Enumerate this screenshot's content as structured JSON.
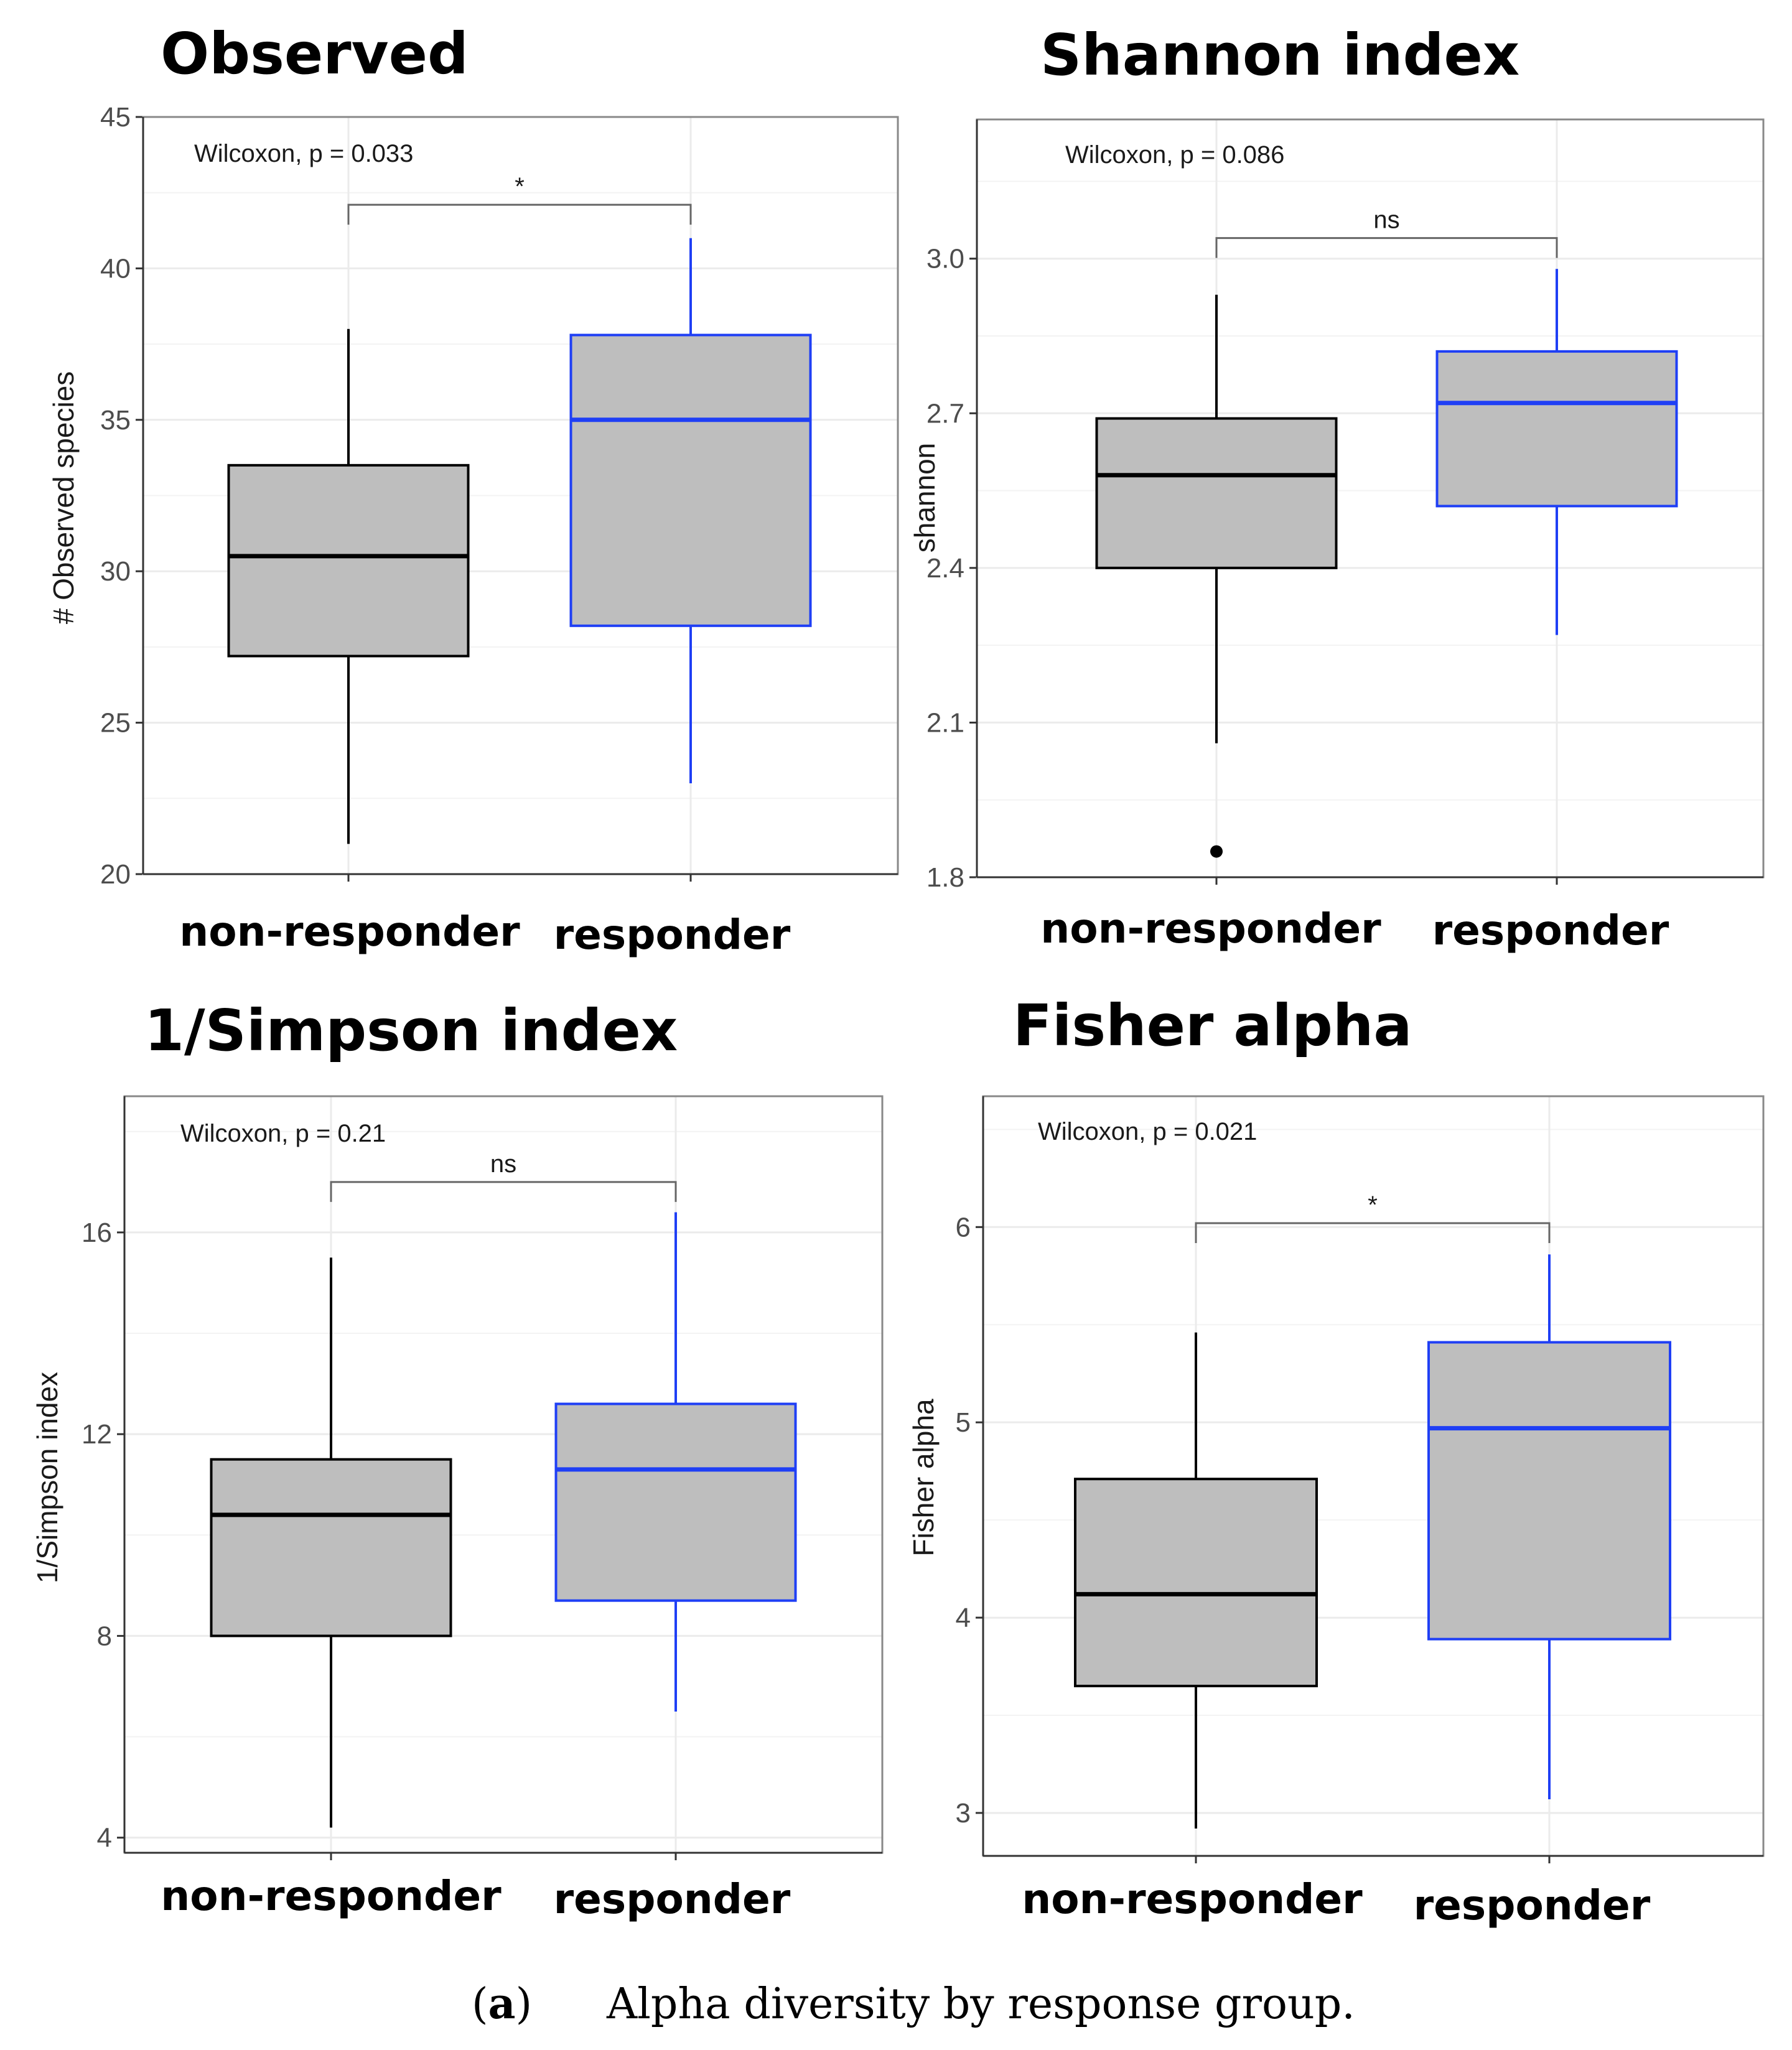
{
  "caption": {
    "label_prefix": "(",
    "label_letter": "a",
    "label_suffix": ")",
    "text": "Alpha diversity by response group."
  },
  "colors": {
    "box_fill": "#bebebe",
    "non_responder": "#000000",
    "responder": "#1f3ff5",
    "grid": "#ebebeb",
    "panel_border": "#888888",
    "outlier": "#000000"
  },
  "chart_data": [
    {
      "type": "box",
      "title": "Observed",
      "ylabel": "# Observed species",
      "ylim": [
        20,
        45
      ],
      "yticks": [
        20,
        25,
        30,
        35,
        40,
        45
      ],
      "tick_labels": [
        "20",
        "25",
        "30",
        "35",
        "40",
        "45"
      ],
      "categories": [
        "non-responder",
        "responder"
      ],
      "test": "Wilcoxon, p = 0.033",
      "significance": "*",
      "boxes": [
        {
          "group": "non-responder",
          "whisker_low": 21,
          "q1": 27.2,
          "median": 30.5,
          "q3": 33.5,
          "whisker_high": 38,
          "outliers": []
        },
        {
          "group": "responder",
          "whisker_low": 23,
          "q1": 28.2,
          "median": 35,
          "q3": 37.8,
          "whisker_high": 41,
          "outliers": []
        }
      ],
      "bracket_y": 42.1
    },
    {
      "type": "box",
      "title": "Shannon index",
      "ylabel": "shannon",
      "ylim": [
        1.8,
        3.27
      ],
      "yticks": [
        1.8,
        2.1,
        2.4,
        2.7,
        3.0
      ],
      "tick_labels": [
        "1.8",
        "2.1",
        "2.4",
        "2.7",
        "3.0"
      ],
      "categories": [
        "non-responder",
        "responder"
      ],
      "test": "Wilcoxon, p = 0.086",
      "significance": "ns",
      "boxes": [
        {
          "group": "non-responder",
          "whisker_low": 2.06,
          "q1": 2.4,
          "median": 2.58,
          "q3": 2.69,
          "whisker_high": 2.93,
          "outliers": [
            1.85
          ]
        },
        {
          "group": "responder",
          "whisker_low": 2.27,
          "q1": 2.52,
          "median": 2.72,
          "q3": 2.82,
          "whisker_high": 2.98,
          "outliers": []
        }
      ],
      "bracket_y": 3.04
    },
    {
      "type": "box",
      "title": "1/Simpson index",
      "ylabel": "1/Simpson index",
      "ylim": [
        3.7,
        18.7
      ],
      "yticks": [
        4,
        8,
        12,
        16
      ],
      "tick_labels": [
        "4",
        "8",
        "12",
        "16"
      ],
      "categories": [
        "non-responder",
        "responder"
      ],
      "test": "Wilcoxon, p = 0.21",
      "significance": "ns",
      "boxes": [
        {
          "group": "non-responder",
          "whisker_low": 4.2,
          "q1": 8,
          "median": 10.4,
          "q3": 11.5,
          "whisker_high": 15.5,
          "outliers": []
        },
        {
          "group": "responder",
          "whisker_low": 6.5,
          "q1": 8.7,
          "median": 11.3,
          "q3": 12.6,
          "whisker_high": 16.4,
          "outliers": []
        }
      ],
      "bracket_y": 17.0
    },
    {
      "type": "box",
      "title": "Fisher alpha",
      "ylabel": "Fisher alpha",
      "ylim": [
        2.78,
        6.67
      ],
      "yticks": [
        3,
        4,
        5,
        6
      ],
      "tick_labels": [
        "3",
        "4",
        "5",
        "6"
      ],
      "categories": [
        "non-responder",
        "responder"
      ],
      "test": "Wilcoxon, p = 0.021",
      "significance": "*",
      "boxes": [
        {
          "group": "non-responder",
          "whisker_low": 2.92,
          "q1": 3.65,
          "median": 4.12,
          "q3": 4.71,
          "whisker_high": 5.46,
          "outliers": []
        },
        {
          "group": "responder",
          "whisker_low": 3.07,
          "q1": 3.89,
          "median": 4.97,
          "q3": 5.41,
          "whisker_high": 5.86,
          "outliers": []
        }
      ],
      "bracket_y": 6.02
    }
  ]
}
